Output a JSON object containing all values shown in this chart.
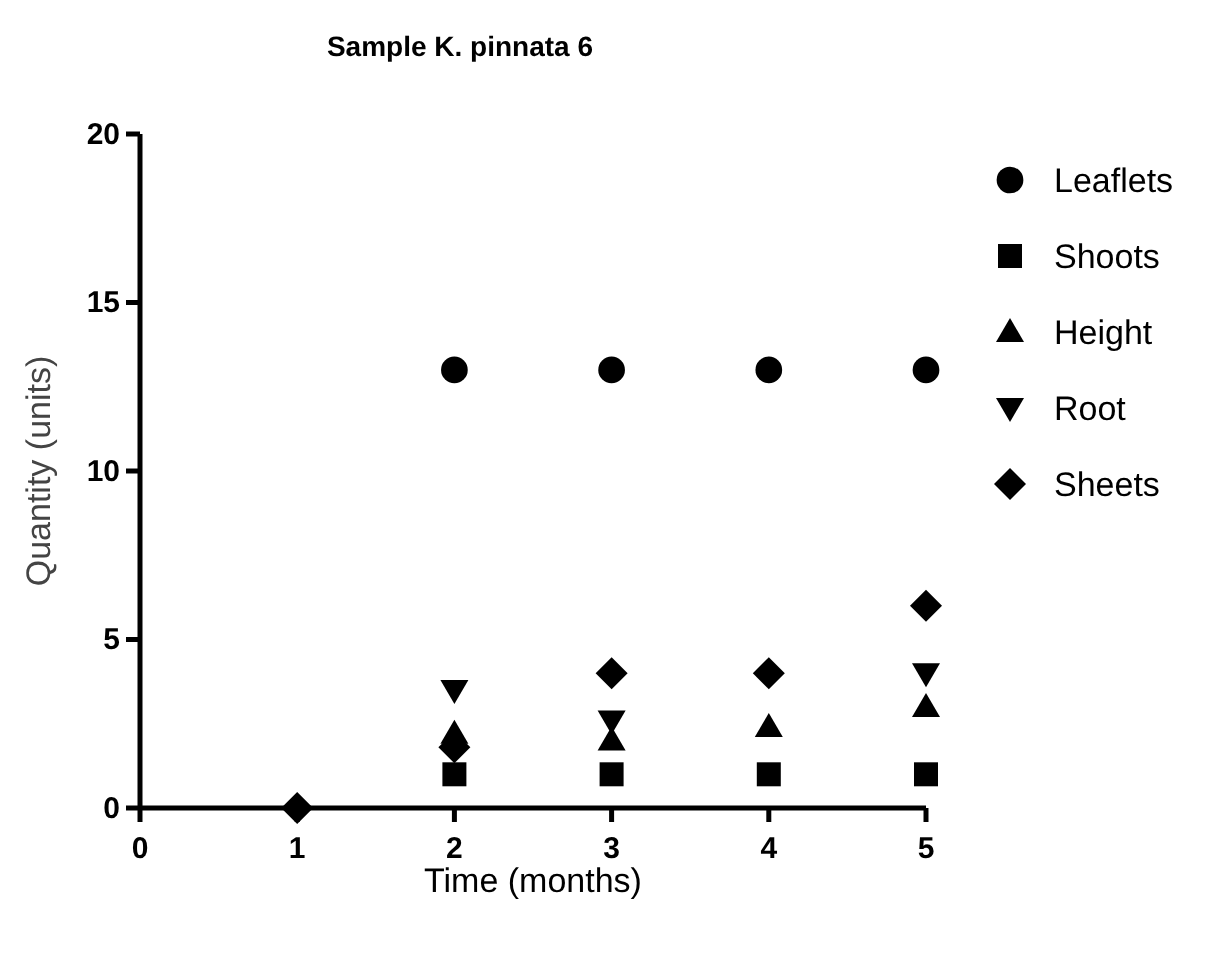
{
  "chart_data": {
    "type": "scatter",
    "title": "Sample K. pinnata 6",
    "xlabel": "Time (months)",
    "ylabel": "Quantity (units)",
    "x": [
      1,
      2,
      3,
      4,
      5
    ],
    "series": [
      {
        "name": "Leaflets",
        "color": "#000000",
        "marker": "circle",
        "values": [
          null,
          13,
          13,
          13,
          13
        ]
      },
      {
        "name": "Shoots",
        "color": "#000000",
        "marker": "square",
        "values": [
          null,
          1,
          1,
          1,
          1
        ]
      },
      {
        "name": "Height",
        "color": "#000000",
        "marker": "triangle",
        "values": [
          null,
          2.2,
          2,
          2.4,
          3
        ]
      },
      {
        "name": "Root",
        "color": "#000000",
        "values": [
          null,
          3.5,
          2.6,
          null,
          4
        ]
      },
      {
        "name": "Sheets",
        "color": "#000000",
        "marker": "diamond",
        "values": [
          0,
          1.8,
          4,
          4,
          6
        ]
      }
    ],
    "xlim": [
      0,
      5
    ],
    "ylim": [
      0,
      20
    ],
    "xticks": [
      0,
      1,
      2,
      3,
      4,
      5
    ],
    "yticks": [
      0,
      5,
      10,
      15,
      20
    ],
    "grid": false,
    "legend": "right"
  }
}
